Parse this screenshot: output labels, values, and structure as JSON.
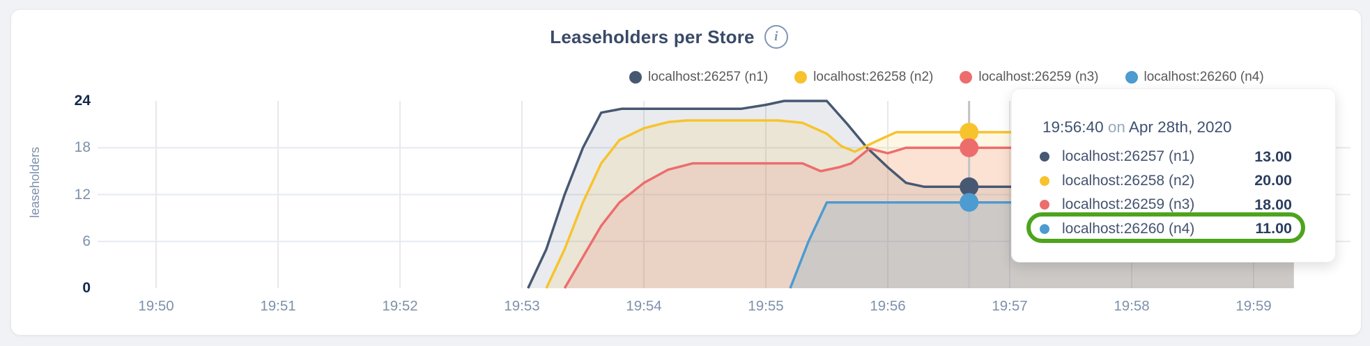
{
  "header": {
    "title": "Leaseholders per Store",
    "info_icon": "i"
  },
  "legend": {
    "items": [
      {
        "label": "localhost:26257 (n1)",
        "color": "#475872"
      },
      {
        "label": "localhost:26258 (n2)",
        "color": "#f7c32d"
      },
      {
        "label": "localhost:26259 (n3)",
        "color": "#ed6d6d"
      },
      {
        "label": "localhost:26260 (n4)",
        "color": "#4c9bd1"
      }
    ]
  },
  "chart_data": {
    "type": "line",
    "title": "Leaseholders per Store",
    "xlabel": "",
    "ylabel": "leaseholders",
    "ylim": [
      0,
      24
    ],
    "grid": true,
    "legend_position": "top-right",
    "xticks": [
      "19:50",
      "19:51",
      "19:52",
      "19:53",
      "19:54",
      "19:55",
      "19:56",
      "19:57",
      "19:58",
      "19:59"
    ],
    "yticks": [
      {
        "label": "24",
        "value": 24,
        "emphasis": true
      },
      {
        "label": "18",
        "value": 18,
        "emphasis": false
      },
      {
        "label": "12",
        "value": 12,
        "emphasis": false
      },
      {
        "label": "6",
        "value": 6,
        "emphasis": false
      },
      {
        "label": "0",
        "value": 0,
        "emphasis": true
      }
    ],
    "ygrid_values": [
      6,
      12,
      18
    ],
    "x_unit": "minutes after 19:50",
    "series": [
      {
        "name": "localhost:26257 (n1)",
        "color": "#475872",
        "fill": "rgba(71,88,114,0.12)",
        "points": [
          [
            3.05,
            0
          ],
          [
            3.2,
            5
          ],
          [
            3.35,
            12
          ],
          [
            3.5,
            18
          ],
          [
            3.65,
            22.5
          ],
          [
            3.82,
            23
          ],
          [
            4.8,
            23
          ],
          [
            5.0,
            23.5
          ],
          [
            5.15,
            24
          ],
          [
            5.5,
            24
          ],
          [
            5.67,
            21
          ],
          [
            5.83,
            18
          ],
          [
            6.0,
            15.5
          ],
          [
            6.15,
            13.5
          ],
          [
            6.3,
            13
          ],
          [
            9.33,
            13
          ]
        ]
      },
      {
        "name": "localhost:26258 (n2)",
        "color": "#f7c32d",
        "fill": "rgba(247,195,45,0.13)",
        "points": [
          [
            3.2,
            0
          ],
          [
            3.35,
            5
          ],
          [
            3.5,
            11
          ],
          [
            3.65,
            16
          ],
          [
            3.8,
            19
          ],
          [
            4.0,
            20.5
          ],
          [
            4.2,
            21.3
          ],
          [
            4.35,
            21.5
          ],
          [
            5.1,
            21.5
          ],
          [
            5.3,
            21.2
          ],
          [
            5.5,
            19.8
          ],
          [
            5.62,
            18.2
          ],
          [
            5.73,
            17.5
          ],
          [
            5.9,
            18.8
          ],
          [
            6.07,
            20
          ],
          [
            9.33,
            20
          ]
        ]
      },
      {
        "name": "localhost:26259 (n3)",
        "color": "#ed6d6d",
        "fill": "rgba(237,109,109,0.15)",
        "points": [
          [
            3.35,
            0
          ],
          [
            3.5,
            4
          ],
          [
            3.65,
            8
          ],
          [
            3.8,
            11
          ],
          [
            4.0,
            13.5
          ],
          [
            4.2,
            15.2
          ],
          [
            4.4,
            16
          ],
          [
            5.3,
            16
          ],
          [
            5.45,
            15
          ],
          [
            5.6,
            15.5
          ],
          [
            5.7,
            16
          ],
          [
            5.85,
            17.9
          ],
          [
            6.0,
            17.3
          ],
          [
            6.15,
            18
          ],
          [
            9.33,
            18
          ]
        ]
      },
      {
        "name": "localhost:26260 (n4)",
        "color": "#4c9bd1",
        "fill": "rgba(76,155,209,0.18)",
        "points": [
          [
            5.2,
            0
          ],
          [
            5.35,
            6
          ],
          [
            5.5,
            11
          ],
          [
            9.33,
            11
          ]
        ]
      }
    ]
  },
  "hover": {
    "time_minutes": 6.6667,
    "line_color": "#c2c2c4",
    "values": [
      13,
      20,
      18,
      11
    ]
  },
  "tooltip": {
    "time": "19:56:40",
    "conjunction": "on",
    "date": "Apr 28th, 2020",
    "rows": [
      {
        "label": "localhost:26257 (n1)",
        "value": "13.00",
        "color": "#475872"
      },
      {
        "label": "localhost:26258 (n2)",
        "value": "20.00",
        "color": "#f7c32d"
      },
      {
        "label": "localhost:26259 (n3)",
        "value": "18.00",
        "color": "#ed6d6d"
      },
      {
        "label": "localhost:26260 (n4)",
        "value": "11.00",
        "color": "#4c9bd1"
      }
    ],
    "highlighted_row": 3,
    "highlight_color": "#4da41d"
  }
}
